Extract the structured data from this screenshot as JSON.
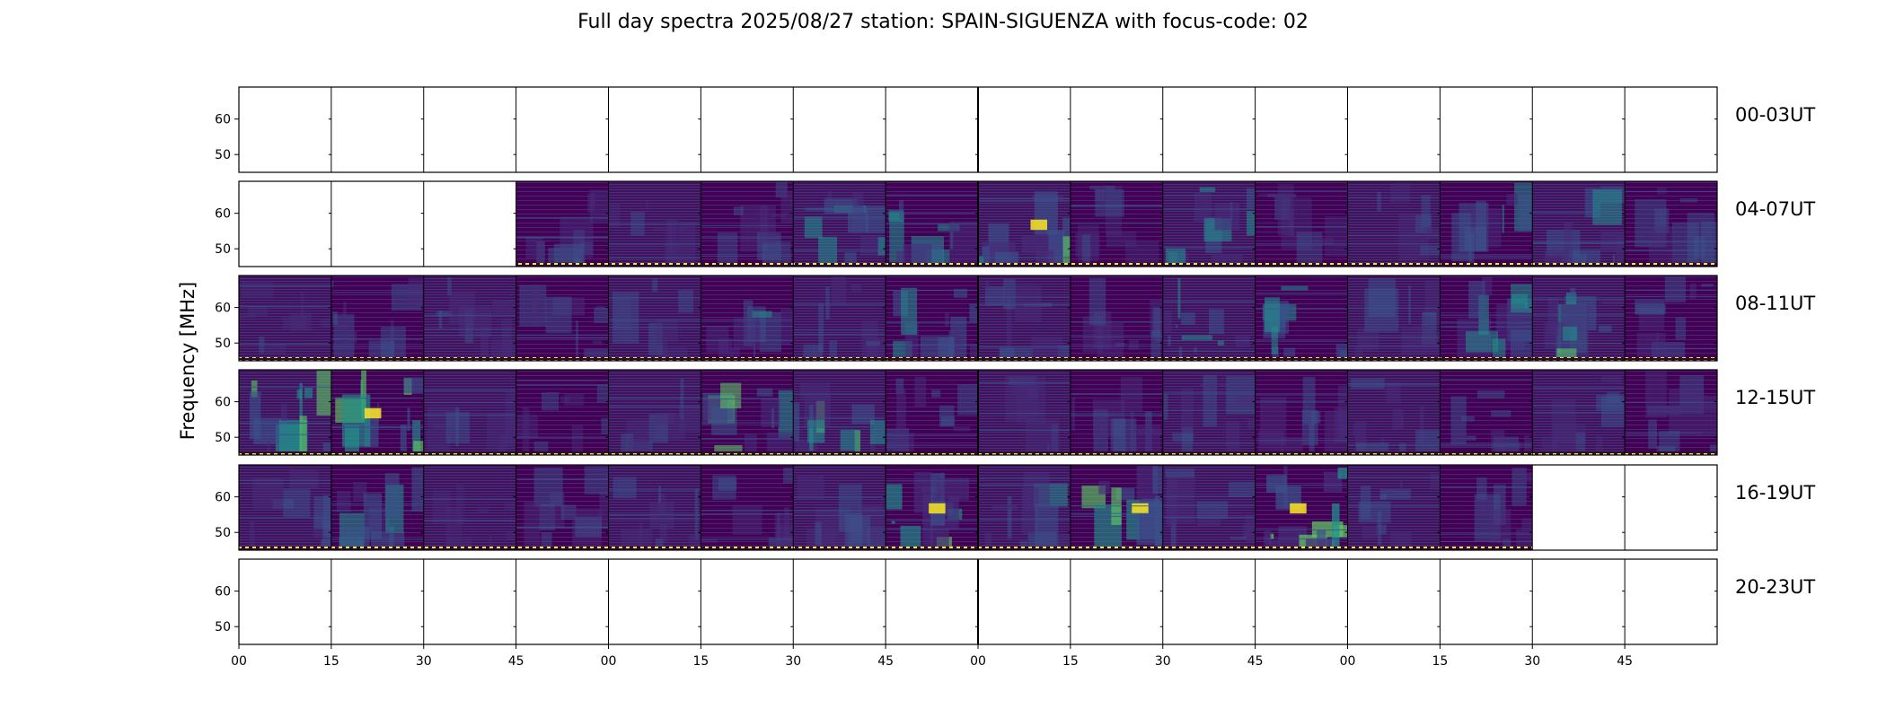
{
  "chart_data": {
    "type": "heatmap",
    "title": "Full day spectra 2025/08/27 station: SPAIN-SIGUENZA with focus-code: 02",
    "ylabel": "Frequency [MHz]",
    "xlabel": "",
    "ylim": [
      45,
      69
    ],
    "y_ticks": [
      "50",
      "60"
    ],
    "y_tick_values": [
      50,
      60
    ],
    "x_tick_labels": [
      "00",
      "15",
      "30",
      "45",
      "00",
      "15",
      "30",
      "45",
      "00",
      "15",
      "30",
      "45",
      "00",
      "15",
      "30",
      "45"
    ],
    "panels_per_row": 16,
    "panel_minutes": 15,
    "colormap": [
      "#440154",
      "#3b528b",
      "#21918c",
      "#5ec962",
      "#fde725"
    ],
    "rows": [
      {
        "label": "00-03UT",
        "has_data": [
          0,
          0,
          0,
          0,
          0,
          0,
          0,
          0,
          0,
          0,
          0,
          0,
          0,
          0,
          0,
          0
        ],
        "activity": [
          0,
          0,
          0,
          0,
          0,
          0,
          0,
          0,
          0,
          0,
          0,
          0,
          0,
          0,
          0,
          0
        ]
      },
      {
        "label": "04-07UT",
        "has_data": [
          0,
          0,
          0,
          1,
          1,
          1,
          1,
          1,
          1,
          1,
          1,
          1,
          1,
          1,
          1,
          1
        ],
        "activity": [
          0,
          0,
          0,
          0.35,
          0.2,
          0.3,
          0.45,
          0.4,
          0.55,
          0.25,
          0.45,
          0.25,
          0.2,
          0.35,
          0.4,
          0.25
        ]
      },
      {
        "label": "08-11UT",
        "has_data": [
          1,
          1,
          1,
          1,
          1,
          1,
          1,
          1,
          1,
          1,
          1,
          1,
          1,
          1,
          1,
          1
        ],
        "activity": [
          0.25,
          0.3,
          0.3,
          0.3,
          0.25,
          0.35,
          0.3,
          0.45,
          0.3,
          0.3,
          0.4,
          0.4,
          0.3,
          0.4,
          0.45,
          0.3
        ]
      },
      {
        "label": "12-15UT",
        "has_data": [
          1,
          1,
          1,
          1,
          1,
          1,
          1,
          1,
          1,
          1,
          1,
          1,
          1,
          1,
          1,
          1
        ],
        "activity": [
          0.5,
          0.55,
          0.25,
          0.25,
          0.25,
          0.45,
          0.45,
          0.3,
          0.2,
          0.3,
          0.3,
          0.3,
          0.3,
          0.3,
          0.25,
          0.3
        ]
      },
      {
        "label": "16-19UT",
        "has_data": [
          1,
          1,
          1,
          1,
          1,
          1,
          1,
          1,
          1,
          1,
          1,
          1,
          1,
          1,
          0,
          0
        ],
        "activity": [
          0.3,
          0.45,
          0.15,
          0.3,
          0.3,
          0.3,
          0.3,
          0.6,
          0.35,
          0.55,
          0.3,
          0.75,
          0.3,
          0.3,
          0,
          0
        ]
      },
      {
        "label": "20-23UT",
        "has_data": [
          0,
          0,
          0,
          0,
          0,
          0,
          0,
          0,
          0,
          0,
          0,
          0,
          0,
          0,
          0,
          0
        ],
        "activity": [
          0,
          0,
          0,
          0,
          0,
          0,
          0,
          0,
          0,
          0,
          0,
          0,
          0,
          0,
          0,
          0
        ]
      }
    ]
  }
}
